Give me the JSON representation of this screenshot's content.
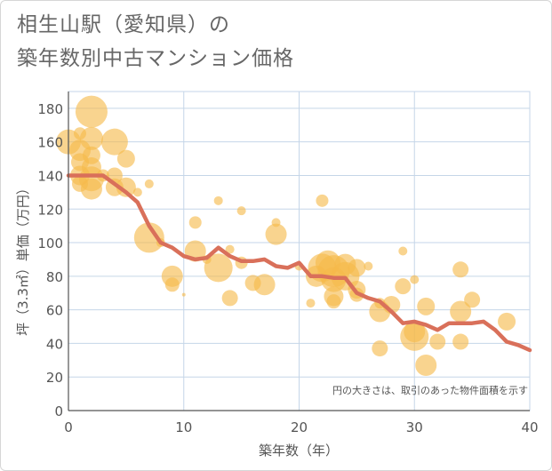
{
  "title": {
    "line1": "相生山駅（愛知県）の",
    "line2": "築年数別中古マンション価格"
  },
  "colors": {
    "bubble": "#f5b94a",
    "line": "#d9705a",
    "grid": "#c5d6e8",
    "axis": "#555555",
    "text": "#555555"
  },
  "chart_data": {
    "type": "scatter",
    "xlabel": "築年数（年）",
    "ylabel": "坪（3.3㎡）単価（万円）",
    "xlim": [
      0,
      40
    ],
    "ylim": [
      0,
      190
    ],
    "xticks": [
      0,
      10,
      20,
      30,
      40
    ],
    "yticks": [
      0,
      20,
      40,
      60,
      80,
      100,
      120,
      140,
      160,
      180
    ],
    "grid": true,
    "annotation": "円の大きさは、取引のあった物件面積を示す",
    "series": [
      {
        "kind": "bubble",
        "points": [
          {
            "x": 0,
            "y": 160,
            "r": 14
          },
          {
            "x": 1,
            "y": 155,
            "r": 12
          },
          {
            "x": 1,
            "y": 148,
            "r": 10
          },
          {
            "x": 1,
            "y": 140,
            "r": 11
          },
          {
            "x": 1,
            "y": 135,
            "r": 9
          },
          {
            "x": 1,
            "y": 165,
            "r": 7
          },
          {
            "x": 2,
            "y": 178,
            "r": 18
          },
          {
            "x": 2,
            "y": 162,
            "r": 13
          },
          {
            "x": 2,
            "y": 152,
            "r": 10
          },
          {
            "x": 2,
            "y": 145,
            "r": 11
          },
          {
            "x": 2,
            "y": 138,
            "r": 14
          },
          {
            "x": 2,
            "y": 132,
            "r": 12
          },
          {
            "x": 3,
            "y": 140,
            "r": 7
          },
          {
            "x": 4,
            "y": 160,
            "r": 15
          },
          {
            "x": 4,
            "y": 140,
            "r": 9
          },
          {
            "x": 4,
            "y": 133,
            "r": 10
          },
          {
            "x": 5,
            "y": 150,
            "r": 10
          },
          {
            "x": 5,
            "y": 133,
            "r": 11
          },
          {
            "x": 6,
            "y": 130,
            "r": 5
          },
          {
            "x": 7,
            "y": 135,
            "r": 5
          },
          {
            "x": 7,
            "y": 103,
            "r": 17
          },
          {
            "x": 8,
            "y": 100,
            "r": 5
          },
          {
            "x": 9,
            "y": 80,
            "r": 12
          },
          {
            "x": 9,
            "y": 75,
            "r": 8
          },
          {
            "x": 10,
            "y": 69,
            "r": 2
          },
          {
            "x": 11,
            "y": 112,
            "r": 7
          },
          {
            "x": 11,
            "y": 95,
            "r": 12
          },
          {
            "x": 12,
            "y": 90,
            "r": 5
          },
          {
            "x": 13,
            "y": 125,
            "r": 5
          },
          {
            "x": 13,
            "y": 85,
            "r": 16
          },
          {
            "x": 14,
            "y": 96,
            "r": 5
          },
          {
            "x": 14,
            "y": 67,
            "r": 9
          },
          {
            "x": 15,
            "y": 119,
            "r": 5
          },
          {
            "x": 15,
            "y": 88,
            "r": 7
          },
          {
            "x": 16,
            "y": 76,
            "r": 9
          },
          {
            "x": 17,
            "y": 75,
            "r": 12
          },
          {
            "x": 18,
            "y": 112,
            "r": 5
          },
          {
            "x": 18,
            "y": 105,
            "r": 12
          },
          {
            "x": 20,
            "y": 86,
            "r": 5
          },
          {
            "x": 21,
            "y": 64,
            "r": 5
          },
          {
            "x": 22,
            "y": 125,
            "r": 7
          },
          {
            "x": 21.5,
            "y": 80,
            "r": 12
          },
          {
            "x": 22,
            "y": 85,
            "r": 16
          },
          {
            "x": 22.5,
            "y": 88,
            "r": 14
          },
          {
            "x": 23,
            "y": 83,
            "r": 18
          },
          {
            "x": 23,
            "y": 78,
            "r": 14
          },
          {
            "x": 23,
            "y": 68,
            "r": 11
          },
          {
            "x": 23,
            "y": 65,
            "r": 8
          },
          {
            "x": 24,
            "y": 87,
            "r": 12
          },
          {
            "x": 24,
            "y": 80,
            "r": 16
          },
          {
            "x": 25,
            "y": 85,
            "r": 10
          },
          {
            "x": 25,
            "y": 72,
            "r": 10
          },
          {
            "x": 25,
            "y": 69,
            "r": 8
          },
          {
            "x": 26,
            "y": 86,
            "r": 5
          },
          {
            "x": 27,
            "y": 64,
            "r": 6
          },
          {
            "x": 27,
            "y": 59,
            "r": 12
          },
          {
            "x": 28,
            "y": 63,
            "r": 10
          },
          {
            "x": 27,
            "y": 37,
            "r": 9
          },
          {
            "x": 29,
            "y": 95,
            "r": 5
          },
          {
            "x": 29,
            "y": 74,
            "r": 9
          },
          {
            "x": 30,
            "y": 78,
            "r": 5
          },
          {
            "x": 30,
            "y": 47,
            "r": 12
          },
          {
            "x": 30,
            "y": 44,
            "r": 16
          },
          {
            "x": 31,
            "y": 62,
            "r": 10
          },
          {
            "x": 31,
            "y": 27,
            "r": 12
          },
          {
            "x": 32,
            "y": 41,
            "r": 9
          },
          {
            "x": 34,
            "y": 84,
            "r": 9
          },
          {
            "x": 34,
            "y": 59,
            "r": 12
          },
          {
            "x": 34,
            "y": 41,
            "r": 9
          },
          {
            "x": 35,
            "y": 66,
            "r": 9
          },
          {
            "x": 38,
            "y": 53,
            "r": 10
          }
        ]
      },
      {
        "kind": "line",
        "x": [
          0,
          1,
          2,
          3,
          4,
          5,
          6,
          7,
          8,
          9,
          10,
          11,
          12,
          13,
          14,
          15,
          16,
          17,
          18,
          19,
          20,
          21,
          22,
          23,
          24,
          25,
          26,
          27,
          28,
          29,
          30,
          31,
          32,
          33,
          34,
          35,
          36,
          37,
          38,
          39,
          40
        ],
        "y": [
          140,
          140,
          140,
          140,
          135,
          130,
          124,
          110,
          100,
          97,
          92,
          90,
          91,
          97,
          92,
          89,
          89,
          90,
          86,
          85,
          88,
          80,
          80,
          79,
          79,
          70,
          67,
          65,
          59,
          52,
          53,
          51,
          48,
          52,
          52,
          52,
          53,
          48,
          41,
          39,
          36
        ]
      }
    ]
  }
}
